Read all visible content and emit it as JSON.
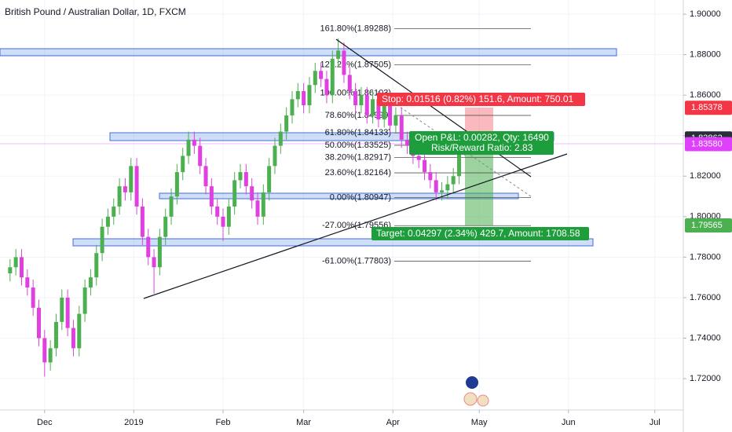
{
  "chart_data": {
    "type": "candlestick",
    "title": "British Pound / Australian Dollar, 1D, FXCM",
    "xlim": [
      -15.5,
      221.9
    ],
    "xticks": [
      {
        "value": 0,
        "label": "Dec"
      },
      {
        "value": 31,
        "label": "2019"
      },
      {
        "value": 62,
        "label": "Feb"
      },
      {
        "value": 90,
        "label": "Mar"
      },
      {
        "value": 121,
        "label": "Apr"
      },
      {
        "value": 151,
        "label": "May"
      },
      {
        "value": 182,
        "label": "Jun"
      },
      {
        "value": 212,
        "label": "Jul"
      }
    ],
    "ylim": [
      1.7045,
      1.907
    ],
    "yticks": [
      {
        "value": 1.9,
        "label": "1.90000"
      },
      {
        "value": 1.88,
        "label": "1.88000"
      },
      {
        "value": 1.86,
        "label": "1.86000"
      },
      {
        "value": 1.84,
        "label": "1.84000"
      },
      {
        "value": 1.82,
        "label": "1.82000"
      },
      {
        "value": 1.8,
        "label": "1.80000"
      },
      {
        "value": 1.78,
        "label": "1.78000"
      },
      {
        "value": 1.76,
        "label": "1.76000"
      },
      {
        "value": 1.74,
        "label": "1.74000"
      },
      {
        "value": 1.72,
        "label": "1.72000"
      }
    ],
    "grid": true,
    "up_color": "#4caf50",
    "down_color": "#e040e0",
    "x": [
      -12,
      -10,
      -8,
      -6,
      -4,
      -2,
      0,
      2,
      4,
      6,
      8,
      10,
      12,
      14,
      16,
      18,
      20,
      22,
      24,
      26,
      28,
      30,
      32,
      34,
      36,
      38,
      40,
      42,
      44,
      46,
      48,
      50,
      52,
      54,
      56,
      58,
      60,
      62,
      64,
      66,
      68,
      70,
      72,
      74,
      76,
      78,
      80,
      82,
      84,
      86,
      88,
      90,
      92,
      94,
      96,
      98,
      100,
      102,
      104,
      106,
      108,
      110,
      112,
      114,
      116,
      118,
      120,
      122,
      124,
      126,
      128,
      130,
      132,
      134,
      136,
      138,
      140,
      142,
      144,
      146
    ],
    "open": [
      1.772,
      1.775,
      1.78,
      1.77,
      1.765,
      1.755,
      1.74,
      1.728,
      1.735,
      1.748,
      1.76,
      1.745,
      1.735,
      1.752,
      1.765,
      1.77,
      1.782,
      1.795,
      1.8,
      1.805,
      1.815,
      1.812,
      1.825,
      1.805,
      1.79,
      1.78,
      1.775,
      1.79,
      1.8,
      1.81,
      1.822,
      1.83,
      1.838,
      1.835,
      1.825,
      1.815,
      1.805,
      1.8,
      1.795,
      1.805,
      1.818,
      1.822,
      1.815,
      1.808,
      1.8,
      1.812,
      1.825,
      1.835,
      1.842,
      1.85,
      1.858,
      1.862,
      1.855,
      1.865,
      1.872,
      1.868,
      1.86,
      1.878,
      1.882,
      1.87,
      1.862,
      1.855,
      1.86,
      1.85,
      1.858,
      1.848,
      1.855,
      1.845,
      1.85,
      1.838,
      1.835,
      1.83,
      1.828,
      1.822,
      1.818,
      1.812,
      1.813,
      1.816,
      1.82,
      1.836
    ],
    "high": [
      1.779,
      1.784,
      1.784,
      1.774,
      1.769,
      1.759,
      1.744,
      1.739,
      1.752,
      1.764,
      1.764,
      1.749,
      1.756,
      1.769,
      1.774,
      1.786,
      1.799,
      1.804,
      1.809,
      1.819,
      1.819,
      1.829,
      1.829,
      1.809,
      1.794,
      1.784,
      1.794,
      1.804,
      1.814,
      1.826,
      1.834,
      1.842,
      1.842,
      1.839,
      1.829,
      1.819,
      1.809,
      1.804,
      1.809,
      1.822,
      1.826,
      1.826,
      1.819,
      1.812,
      1.816,
      1.829,
      1.839,
      1.846,
      1.854,
      1.862,
      1.866,
      1.866,
      1.869,
      1.876,
      1.876,
      1.872,
      1.882,
      1.888,
      1.886,
      1.874,
      1.866,
      1.864,
      1.864,
      1.862,
      1.862,
      1.859,
      1.859,
      1.854,
      1.854,
      1.842,
      1.839,
      1.834,
      1.832,
      1.826,
      1.822,
      1.817,
      1.82,
      1.824,
      1.84,
      1.84
    ],
    "low": [
      1.768,
      1.771,
      1.766,
      1.761,
      1.751,
      1.736,
      1.721,
      1.724,
      1.731,
      1.744,
      1.741,
      1.731,
      1.731,
      1.748,
      1.761,
      1.766,
      1.778,
      1.791,
      1.796,
      1.801,
      1.808,
      1.808,
      1.801,
      1.786,
      1.776,
      1.762,
      1.771,
      1.786,
      1.796,
      1.806,
      1.818,
      1.826,
      1.831,
      1.821,
      1.811,
      1.801,
      1.796,
      1.788,
      1.791,
      1.801,
      1.814,
      1.811,
      1.804,
      1.796,
      1.796,
      1.808,
      1.821,
      1.831,
      1.838,
      1.846,
      1.854,
      1.851,
      1.851,
      1.861,
      1.864,
      1.856,
      1.856,
      1.874,
      1.866,
      1.858,
      1.851,
      1.851,
      1.846,
      1.846,
      1.844,
      1.844,
      1.841,
      1.841,
      1.834,
      1.831,
      1.826,
      1.824,
      1.818,
      1.814,
      1.808,
      1.808,
      1.809,
      1.812,
      1.816,
      1.83
    ],
    "close": [
      1.775,
      1.78,
      1.77,
      1.765,
      1.755,
      1.74,
      1.728,
      1.735,
      1.748,
      1.76,
      1.745,
      1.735,
      1.752,
      1.765,
      1.77,
      1.782,
      1.795,
      1.8,
      1.805,
      1.815,
      1.812,
      1.825,
      1.805,
      1.79,
      1.78,
      1.775,
      1.79,
      1.8,
      1.81,
      1.822,
      1.83,
      1.838,
      1.835,
      1.825,
      1.815,
      1.805,
      1.8,
      1.795,
      1.805,
      1.818,
      1.822,
      1.815,
      1.808,
      1.8,
      1.812,
      1.825,
      1.835,
      1.842,
      1.85,
      1.858,
      1.862,
      1.855,
      1.865,
      1.872,
      1.868,
      1.86,
      1.878,
      1.882,
      1.87,
      1.862,
      1.855,
      1.86,
      1.85,
      1.858,
      1.848,
      1.855,
      1.845,
      1.85,
      1.838,
      1.835,
      1.83,
      1.828,
      1.822,
      1.818,
      1.812,
      1.813,
      1.816,
      1.82,
      1.836,
      1.834
    ],
    "fib_levels": [
      {
        "value": 1.89288,
        "label": "161.80%(1.89288)"
      },
      {
        "value": 1.87505,
        "label": "127.20%(1.87505)"
      },
      {
        "value": 1.86103,
        "label": "100.00%(1.86103)"
      },
      {
        "value": 1.84999,
        "label": "78.60%(1.84999)"
      },
      {
        "value": 1.84133,
        "label": "61.80%(1.84133)"
      },
      {
        "value": 1.83525,
        "label": "50.00%(1.83525)"
      },
      {
        "value": 1.82917,
        "label": "38.20%(1.82917)"
      },
      {
        "value": 1.82164,
        "label": "23.60%(1.82164)"
      },
      {
        "value": 1.80947,
        "label": "0.00%(1.80947)"
      },
      {
        "value": 1.79556,
        "label": "-27.00%(1.79556)"
      },
      {
        "value": 1.77803,
        "label": "-61.00%(1.77803)"
      }
    ],
    "price_tags": [
      {
        "value": 1.85378,
        "color": "#f23645"
      },
      {
        "value": 1.83862,
        "color": "#2a2e39"
      },
      {
        "value": 1.8358,
        "label": "1.83580",
        "color": "#e040fb"
      },
      {
        "value": 1.79565,
        "color": "#4caf50"
      }
    ],
    "position": {
      "stop_label": "Stop: 0.01516 (0.82%) 151.6, Amount: 750.01",
      "open_label": "Open P&L: 0.00282, Qty: 16490",
      "ratio_label": "Risk/Reward Ratio: 2.83",
      "target_label": "Target: 0.04297 (2.34%) 429.7, Amount: 1708.58"
    }
  }
}
